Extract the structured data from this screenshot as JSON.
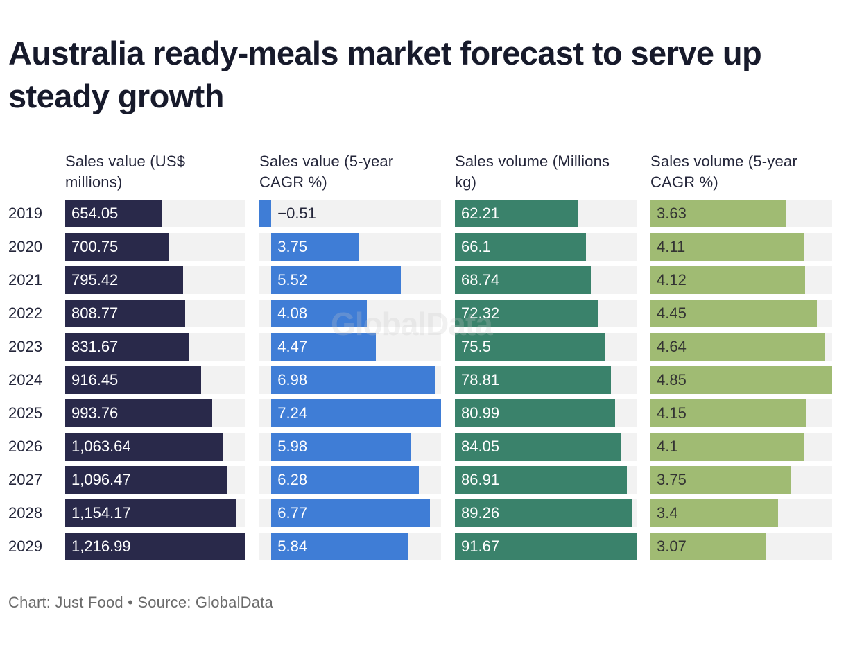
{
  "title": "Australia ready-meals market forecast to serve up steady growth",
  "watermark": "GlobalData",
  "footer": "Chart: Just Food • Source: GlobalData",
  "chart_data": {
    "type": "bar",
    "orientation": "horizontal",
    "title": "Australia ready-meals market forecast to serve up steady growth",
    "categories": [
      "2019",
      "2020",
      "2021",
      "2022",
      "2023",
      "2024",
      "2025",
      "2026",
      "2027",
      "2028",
      "2029"
    ],
    "series": [
      {
        "name": "Sales value (US$ millions)",
        "color": "#29294a",
        "label_color": "#ffffff",
        "values": [
          654.05,
          700.75,
          795.42,
          808.77,
          831.67,
          916.45,
          993.76,
          1063.64,
          1096.47,
          1154.17,
          1216.99
        ],
        "labels": [
          "654.05",
          "700.75",
          "795.42",
          "808.77",
          "831.67",
          "916.45",
          "993.76",
          "1,063.64",
          "1,096.47",
          "1,154.17",
          "1,216.99"
        ]
      },
      {
        "name": "Sales value (5-year CAGR %)",
        "color": "#3f7dd6",
        "label_color": "#ffffff",
        "negative_label_color": "#24263a",
        "values": [
          -0.51,
          3.75,
          5.52,
          4.08,
          4.47,
          6.98,
          7.24,
          5.98,
          6.28,
          6.77,
          5.84
        ],
        "labels": [
          "−0.51",
          "3.75",
          "5.52",
          "4.08",
          "4.47",
          "6.98",
          "7.24",
          "5.98",
          "6.28",
          "6.77",
          "5.84"
        ]
      },
      {
        "name": "Sales volume (Millions kg)",
        "color": "#3a826b",
        "label_color": "#ffffff",
        "values": [
          62.21,
          66.1,
          68.74,
          72.32,
          75.5,
          78.81,
          80.99,
          84.05,
          86.91,
          89.26,
          91.67
        ],
        "labels": [
          "62.21",
          "66.1",
          "68.74",
          "72.32",
          "75.5",
          "78.81",
          "80.99",
          "84.05",
          "86.91",
          "89.26",
          "91.67"
        ]
      },
      {
        "name": "Sales volume (5-year CAGR %)",
        "color": "#a0bb73",
        "label_color": "#333333",
        "values": [
          3.63,
          4.11,
          4.12,
          4.45,
          4.64,
          4.85,
          4.15,
          4.1,
          3.75,
          3.4,
          3.07
        ],
        "labels": [
          "3.63",
          "4.11",
          "4.12",
          "4.45",
          "4.64",
          "4.85",
          "4.15",
          "4.1",
          "3.75",
          "3.4",
          "3.07"
        ]
      }
    ],
    "track_color": "#f2f2f2",
    "grid": false,
    "legend": "none",
    "xlabel": "",
    "ylabel": ""
  }
}
